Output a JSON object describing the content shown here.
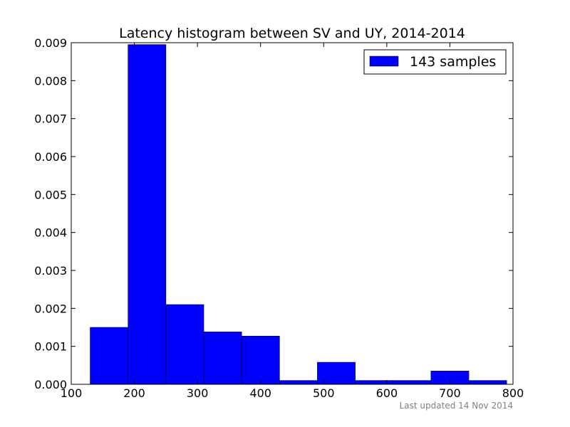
{
  "chart_data": {
    "type": "bar",
    "title": "Latency histogram between SV and UY, 2014-2014",
    "xlabel": "",
    "ylabel": "",
    "xlim": [
      100,
      800
    ],
    "ylim": [
      0,
      0.009
    ],
    "x_ticks": [
      100,
      200,
      300,
      400,
      500,
      600,
      700,
      800
    ],
    "x_tick_labels": [
      "100",
      "200",
      "300",
      "400",
      "500",
      "600",
      "700",
      "800"
    ],
    "y_ticks": [
      0,
      0.001,
      0.002,
      0.003,
      0.004,
      0.005,
      0.006,
      0.007,
      0.008,
      0.009
    ],
    "y_tick_labels": [
      "0.000",
      "0.001",
      "0.002",
      "0.003",
      "0.004",
      "0.005",
      "0.006",
      "0.007",
      "0.008",
      "0.009"
    ],
    "bins": [
      {
        "start": 130,
        "end": 190,
        "value": 0.0015
      },
      {
        "start": 190,
        "end": 250,
        "value": 0.00895
      },
      {
        "start": 250,
        "end": 310,
        "value": 0.0021
      },
      {
        "start": 310,
        "end": 370,
        "value": 0.00138
      },
      {
        "start": 370,
        "end": 430,
        "value": 0.00127
      },
      {
        "start": 430,
        "end": 490,
        "value": 0.0001
      },
      {
        "start": 490,
        "end": 550,
        "value": 0.00058
      },
      {
        "start": 550,
        "end": 610,
        "value": 0.0001
      },
      {
        "start": 610,
        "end": 670,
        "value": 0.0001
      },
      {
        "start": 670,
        "end": 730,
        "value": 0.00035
      },
      {
        "start": 730,
        "end": 790,
        "value": 0.0001
      }
    ],
    "series": [
      {
        "name": "143 samples",
        "color": "#0000ff"
      }
    ],
    "legend_position": "top-right",
    "grid": false
  },
  "footer": {
    "text": "Last updated 14 Nov 2014"
  }
}
